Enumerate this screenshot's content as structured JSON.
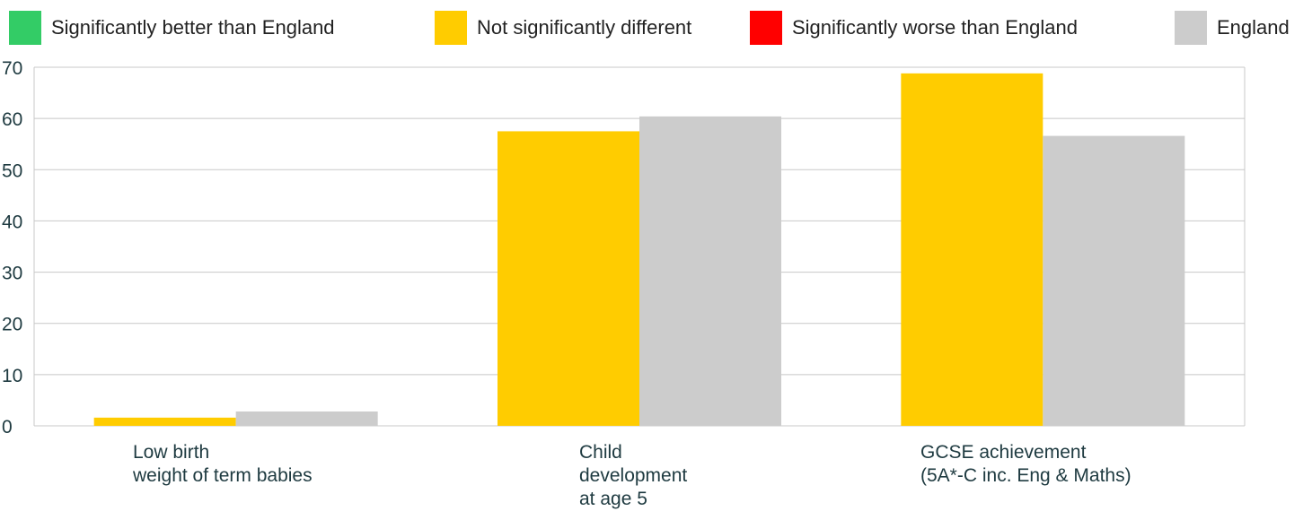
{
  "chart_data": {
    "type": "bar",
    "title": "",
    "xlabel": "",
    "ylabel": "",
    "ylim": [
      0,
      70
    ],
    "y_ticks": [
      0,
      10,
      20,
      30,
      40,
      50,
      60,
      70
    ],
    "grid": true,
    "legend_position": "top",
    "legend": [
      {
        "label": "Significantly better than England",
        "color": "#33cc66"
      },
      {
        "label": "Not significantly different",
        "color": "#ffcc00"
      },
      {
        "label": "Significantly worse than England",
        "color": "#ff0000"
      },
      {
        "label": "England",
        "color": "#cccccc"
      }
    ],
    "categories": [
      [
        "Low birth",
        "weight of term babies"
      ],
      [
        "Child",
        "development",
        "at age 5"
      ],
      [
        "GCSE achievement",
        "(5A*-C inc. Eng & Maths)"
      ]
    ],
    "series": [
      {
        "values": [
          1.6,
          57.5,
          68.8
        ],
        "colors": [
          "#ffcc00",
          "#ffcc00",
          "#ffcc00"
        ]
      },
      {
        "name": "England",
        "values": [
          2.8,
          60.4,
          56.6
        ],
        "colors": [
          "#cccccc",
          "#cccccc",
          "#cccccc"
        ]
      }
    ]
  }
}
